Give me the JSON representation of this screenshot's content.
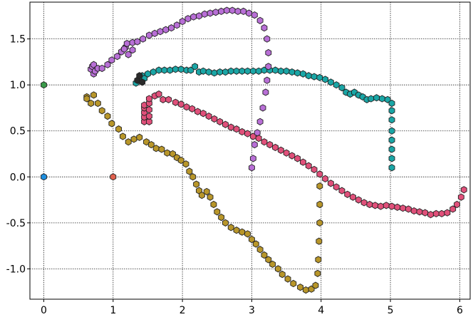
{
  "chart_data": {
    "type": "scatter",
    "title": "",
    "xlabel": "",
    "ylabel": "",
    "xlim": [
      -0.2,
      6.15
    ],
    "ylim": [
      -1.33,
      1.9
    ],
    "xticks": [
      0,
      1,
      2,
      3,
      4,
      5,
      6
    ],
    "xtick_labels": [
      "0",
      "1",
      "2",
      "3",
      "4",
      "5",
      "6"
    ],
    "yticks": [
      -1.0,
      -0.5,
      0.0,
      0.5,
      1.0,
      1.5
    ],
    "ytick_labels": [
      "-1.0",
      "-0.5",
      "0.0",
      "0.5",
      "1.0",
      "1.5"
    ],
    "grid": true,
    "marker": "hexagon",
    "series": [
      {
        "color": "#1f8fdf",
        "points": [
          [
            0.0,
            0.0
          ]
        ]
      },
      {
        "color": "#3a9a4a",
        "points": [
          [
            0.0,
            1.0
          ]
        ]
      },
      {
        "color": "#e0604e",
        "points": [
          [
            1.0,
            0.0
          ]
        ]
      },
      {
        "color": "#b8962a",
        "points": [
          [
            0.62,
            0.87
          ],
          [
            0.72,
            0.89
          ],
          [
            0.62,
            0.85
          ],
          [
            0.68,
            0.8
          ],
          [
            0.78,
            0.8
          ],
          [
            0.84,
            0.72
          ],
          [
            0.92,
            0.66
          ],
          [
            0.98,
            0.58
          ],
          [
            1.08,
            0.52
          ],
          [
            1.14,
            0.44
          ],
          [
            1.22,
            0.38
          ],
          [
            1.3,
            0.41
          ],
          [
            1.38,
            0.43
          ],
          [
            1.48,
            0.38
          ],
          [
            1.55,
            0.35
          ],
          [
            1.62,
            0.31
          ],
          [
            1.7,
            0.3
          ],
          [
            1.78,
            0.26
          ],
          [
            1.86,
            0.25
          ],
          [
            1.92,
            0.21
          ],
          [
            1.98,
            0.18
          ],
          [
            2.05,
            0.14
          ],
          [
            2.1,
            0.06
          ],
          [
            2.15,
            0.0
          ],
          [
            2.2,
            -0.08
          ],
          [
            2.24,
            -0.15
          ],
          [
            2.28,
            -0.2
          ],
          [
            2.35,
            -0.16
          ],
          [
            2.4,
            -0.22
          ],
          [
            2.45,
            -0.3
          ],
          [
            2.5,
            -0.38
          ],
          [
            2.56,
            -0.44
          ],
          [
            2.62,
            -0.5
          ],
          [
            2.7,
            -0.55
          ],
          [
            2.78,
            -0.58
          ],
          [
            2.86,
            -0.6
          ],
          [
            2.94,
            -0.62
          ],
          [
            3.0,
            -0.68
          ],
          [
            3.06,
            -0.73
          ],
          [
            3.12,
            -0.79
          ],
          [
            3.18,
            -0.85
          ],
          [
            3.24,
            -0.9
          ],
          [
            3.3,
            -0.95
          ],
          [
            3.38,
            -1.0
          ],
          [
            3.44,
            -1.06
          ],
          [
            3.52,
            -1.11
          ],
          [
            3.6,
            -1.16
          ],
          [
            3.7,
            -1.2
          ],
          [
            3.78,
            -1.23
          ],
          [
            3.86,
            -1.22
          ],
          [
            3.92,
            -1.18
          ],
          [
            3.95,
            -1.05
          ],
          [
            3.96,
            -0.9
          ],
          [
            3.97,
            -0.7
          ],
          [
            3.98,
            -0.5
          ],
          [
            3.98,
            -0.3
          ],
          [
            3.98,
            -0.1
          ]
        ]
      },
      {
        "color": "#e0507a",
        "points": [
          [
            1.45,
            0.6
          ],
          [
            1.45,
            0.65
          ],
          [
            1.45,
            0.7
          ],
          [
            1.45,
            0.75
          ],
          [
            1.45,
            0.78
          ],
          [
            1.52,
            0.6
          ],
          [
            1.52,
            0.66
          ],
          [
            1.52,
            0.73
          ],
          [
            1.52,
            0.8
          ],
          [
            1.52,
            0.85
          ],
          [
            1.6,
            0.88
          ],
          [
            1.66,
            0.9
          ],
          [
            1.72,
            0.84
          ],
          [
            1.8,
            0.84
          ],
          [
            1.9,
            0.81
          ],
          [
            1.98,
            0.79
          ],
          [
            2.06,
            0.76
          ],
          [
            2.14,
            0.74
          ],
          [
            2.22,
            0.71
          ],
          [
            2.3,
            0.69
          ],
          [
            2.38,
            0.66
          ],
          [
            2.46,
            0.63
          ],
          [
            2.54,
            0.6
          ],
          [
            2.62,
            0.57
          ],
          [
            2.7,
            0.54
          ],
          [
            2.78,
            0.52
          ],
          [
            2.86,
            0.49
          ],
          [
            2.94,
            0.47
          ],
          [
            3.02,
            0.44
          ],
          [
            3.1,
            0.42
          ],
          [
            3.18,
            0.38
          ],
          [
            3.26,
            0.35
          ],
          [
            3.34,
            0.32
          ],
          [
            3.42,
            0.29
          ],
          [
            3.5,
            0.26
          ],
          [
            3.58,
            0.23
          ],
          [
            3.66,
            0.2
          ],
          [
            3.74,
            0.16
          ],
          [
            3.82,
            0.12
          ],
          [
            3.9,
            0.08
          ],
          [
            3.98,
            0.03
          ],
          [
            4.06,
            -0.02
          ],
          [
            4.14,
            -0.07
          ],
          [
            4.22,
            -0.11
          ],
          [
            4.3,
            -0.15
          ],
          [
            4.38,
            -0.19
          ],
          [
            4.46,
            -0.22
          ],
          [
            4.54,
            -0.25
          ],
          [
            4.62,
            -0.28
          ],
          [
            4.7,
            -0.3
          ],
          [
            4.78,
            -0.31
          ],
          [
            4.86,
            -0.32
          ],
          [
            4.94,
            -0.31
          ],
          [
            5.02,
            -0.32
          ],
          [
            5.1,
            -0.33
          ],
          [
            5.18,
            -0.34
          ],
          [
            5.26,
            -0.35
          ],
          [
            5.34,
            -0.37
          ],
          [
            5.42,
            -0.38
          ],
          [
            5.5,
            -0.39
          ],
          [
            5.58,
            -0.41
          ],
          [
            5.66,
            -0.4
          ],
          [
            5.74,
            -0.4
          ],
          [
            5.82,
            -0.39
          ],
          [
            5.9,
            -0.35
          ],
          [
            5.96,
            -0.3
          ],
          [
            6.02,
            -0.22
          ],
          [
            6.06,
            -0.14
          ]
        ]
      },
      {
        "color": "#1aa6a6",
        "points": [
          [
            1.33,
            1.02
          ],
          [
            1.38,
            1.06
          ],
          [
            1.42,
            1.1
          ],
          [
            1.45,
            1.07
          ],
          [
            1.5,
            1.12
          ],
          [
            1.58,
            1.14
          ],
          [
            1.66,
            1.16
          ],
          [
            1.74,
            1.16
          ],
          [
            1.82,
            1.16
          ],
          [
            1.9,
            1.17
          ],
          [
            1.98,
            1.17
          ],
          [
            2.06,
            1.16
          ],
          [
            2.12,
            1.16
          ],
          [
            2.18,
            1.2
          ],
          [
            2.24,
            1.14
          ],
          [
            2.3,
            1.15
          ],
          [
            2.38,
            1.14
          ],
          [
            2.46,
            1.13
          ],
          [
            2.54,
            1.14
          ],
          [
            2.62,
            1.14
          ],
          [
            2.7,
            1.15
          ],
          [
            2.78,
            1.15
          ],
          [
            2.86,
            1.15
          ],
          [
            2.94,
            1.15
          ],
          [
            3.02,
            1.15
          ],
          [
            3.1,
            1.15
          ],
          [
            3.18,
            1.16
          ],
          [
            3.26,
            1.16
          ],
          [
            3.34,
            1.16
          ],
          [
            3.42,
            1.15
          ],
          [
            3.5,
            1.15
          ],
          [
            3.58,
            1.14
          ],
          [
            3.66,
            1.13
          ],
          [
            3.74,
            1.12
          ],
          [
            3.82,
            1.1
          ],
          [
            3.9,
            1.09
          ],
          [
            3.98,
            1.08
          ],
          [
            4.06,
            1.06
          ],
          [
            4.14,
            1.03
          ],
          [
            4.22,
            1.0
          ],
          [
            4.3,
            0.97
          ],
          [
            4.36,
            0.92
          ],
          [
            4.42,
            0.9
          ],
          [
            4.48,
            0.92
          ],
          [
            4.54,
            0.89
          ],
          [
            4.6,
            0.87
          ],
          [
            4.66,
            0.84
          ],
          [
            4.72,
            0.85
          ],
          [
            4.8,
            0.86
          ],
          [
            4.88,
            0.85
          ],
          [
            4.96,
            0.84
          ],
          [
            5.02,
            0.8
          ],
          [
            5.02,
            0.72
          ],
          [
            5.02,
            0.62
          ],
          [
            5.02,
            0.5
          ],
          [
            5.02,
            0.4
          ],
          [
            5.02,
            0.3
          ],
          [
            5.02,
            0.2
          ],
          [
            5.02,
            0.1
          ]
        ]
      },
      {
        "color": "#b86fd6",
        "points": [
          [
            0.68,
            1.17
          ],
          [
            0.7,
            1.2
          ],
          [
            0.72,
            1.22
          ],
          [
            0.72,
            1.12
          ],
          [
            0.74,
            1.15
          ],
          [
            0.78,
            1.18
          ],
          [
            0.84,
            1.18
          ],
          [
            0.92,
            1.22
          ],
          [
            0.98,
            1.27
          ],
          [
            1.06,
            1.31
          ],
          [
            1.12,
            1.36
          ],
          [
            1.18,
            1.41
          ],
          [
            1.2,
            1.45
          ],
          [
            1.28,
            1.46
          ],
          [
            1.35,
            1.47
          ],
          [
            1.43,
            1.5
          ],
          [
            1.52,
            1.54
          ],
          [
            1.6,
            1.56
          ],
          [
            1.68,
            1.58
          ],
          [
            1.76,
            1.6
          ],
          [
            1.84,
            1.62
          ],
          [
            1.92,
            1.65
          ],
          [
            2.0,
            1.69
          ],
          [
            2.08,
            1.72
          ],
          [
            2.16,
            1.74
          ],
          [
            2.24,
            1.75
          ],
          [
            2.32,
            1.77
          ],
          [
            2.4,
            1.78
          ],
          [
            2.48,
            1.79
          ],
          [
            2.56,
            1.8
          ],
          [
            2.64,
            1.81
          ],
          [
            2.72,
            1.81
          ],
          [
            2.8,
            1.8
          ],
          [
            2.88,
            1.8
          ],
          [
            2.96,
            1.78
          ],
          [
            3.04,
            1.76
          ],
          [
            3.12,
            1.7
          ],
          [
            3.18,
            1.62
          ],
          [
            3.22,
            1.5
          ],
          [
            3.24,
            1.35
          ],
          [
            3.24,
            1.2
          ],
          [
            3.22,
            1.05
          ],
          [
            3.2,
            0.92
          ],
          [
            3.16,
            0.75
          ],
          [
            3.12,
            0.6
          ],
          [
            3.08,
            0.48
          ],
          [
            3.04,
            0.35
          ],
          [
            3.02,
            0.2
          ],
          [
            3.0,
            0.1
          ],
          [
            1.16,
            1.39
          ],
          [
            1.22,
            1.33
          ],
          [
            1.28,
            1.38
          ]
        ]
      },
      {
        "color": "#2a2a2a",
        "points": [
          [
            1.35,
            1.05
          ],
          [
            1.42,
            1.03
          ],
          [
            1.38,
            1.1
          ]
        ]
      }
    ]
  }
}
